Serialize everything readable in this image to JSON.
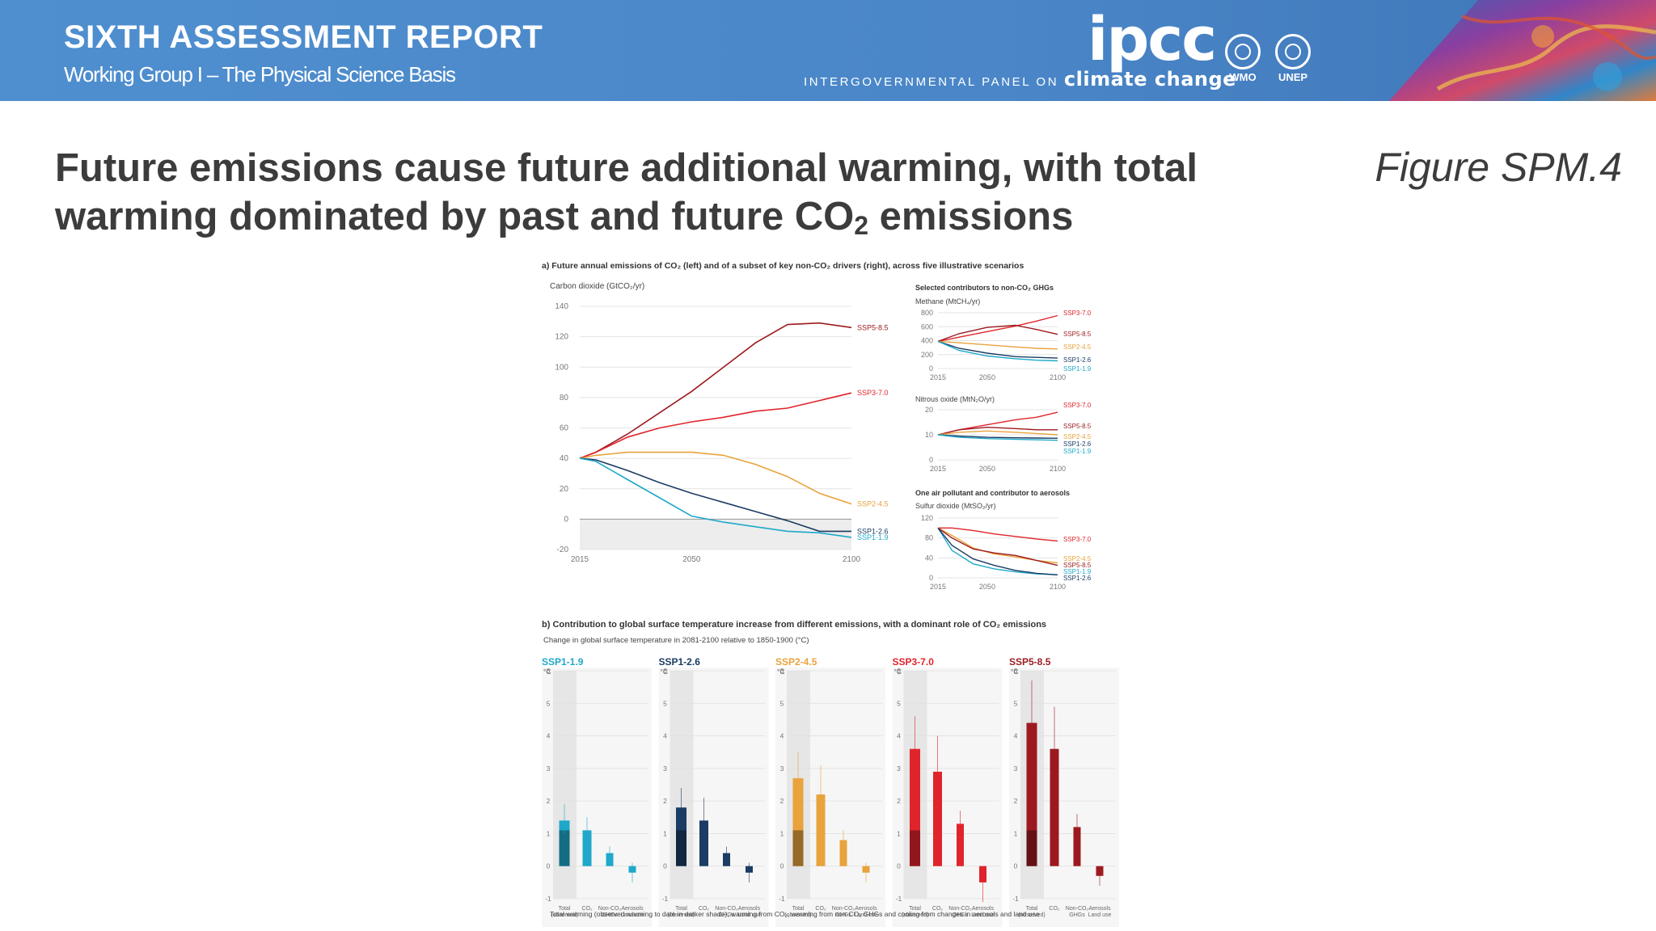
{
  "header": {
    "report_title": "SIXTH ASSESSMENT REPORT",
    "report_subtitle": "Working Group I – The Physical Science Basis",
    "logo_text": "ipcc",
    "panel_name_prefix": "INTERGOVERNMENTAL PANEL ON",
    "panel_name_suffix": "climate change",
    "partners": [
      {
        "label": "WMO",
        "icon": "wmo-emblem-icon"
      },
      {
        "label": "UNEP",
        "icon": "unep-emblem-icon"
      }
    ],
    "colors": {
      "banner": "#4a86c8"
    }
  },
  "slide": {
    "title_line1": "Future emissions cause future additional warming, with total",
    "title_line2_prefix": "warming dominated by past and future CO",
    "title_line2_sub": "2",
    "title_line2_suffix": " emissions",
    "figure_label": "Figure SPM.4"
  },
  "colors": {
    "SSP1-1.9": "#1fa8c9",
    "SSP1-2.6": "#1b3c63",
    "SSP2-4.5": "#e8a33c",
    "SSP3-7.0": "#e0242b",
    "SSP5-8.5": "#9c1a1f"
  },
  "chart_data": [
    {
      "type": "line",
      "panel": "a",
      "panel_title": "a) Future annual emissions of CO₂ (left) and of a subset of key non-CO₂ drivers (right), across five illustrative scenarios",
      "title": "",
      "ylabel": "Carbon dioxide (GtCO₂/yr)",
      "xlabel": "",
      "xlim": [
        2015,
        2100
      ],
      "ylim": [
        -20,
        140
      ],
      "xticks": [
        2015,
        2050,
        2100
      ],
      "yticks": [
        -20,
        0,
        20,
        40,
        60,
        80,
        100,
        120,
        140
      ],
      "x": [
        2015,
        2020,
        2030,
        2040,
        2050,
        2060,
        2070,
        2080,
        2090,
        2100
      ],
      "series": [
        {
          "name": "SSP5-8.5",
          "values": [
            40,
            44,
            56,
            70,
            84,
            100,
            116,
            128,
            129,
            126
          ]
        },
        {
          "name": "SSP3-7.0",
          "values": [
            40,
            44,
            54,
            60,
            64,
            67,
            71,
            73,
            78,
            83
          ]
        },
        {
          "name": "SSP2-4.5",
          "values": [
            40,
            42,
            44,
            44,
            44,
            42,
            36,
            28,
            17,
            10
          ]
        },
        {
          "name": "SSP1-2.6",
          "values": [
            40,
            39,
            32,
            24,
            17,
            11,
            5,
            -1,
            -8,
            -8
          ]
        },
        {
          "name": "SSP1-1.9",
          "values": [
            40,
            38,
            26,
            14,
            2,
            -2,
            -5,
            -8,
            -9,
            -12
          ]
        }
      ]
    },
    {
      "type": "line",
      "panel": "a-right-1",
      "section_title": "Selected contributors to non-CO₂ GHGs",
      "ylabel": "Methane (MtCH₄/yr)",
      "xlim": [
        2015,
        2100
      ],
      "ylim": [
        0,
        800
      ],
      "xticks": [
        2015,
        2050,
        2100
      ],
      "yticks": [
        0,
        200,
        400,
        600,
        800
      ],
      "x": [
        2015,
        2030,
        2050,
        2070,
        2085,
        2100
      ],
      "series": [
        {
          "name": "SSP3-7.0",
          "values": [
            390,
            450,
            530,
            610,
            680,
            760
          ]
        },
        {
          "name": "SSP5-8.5",
          "values": [
            390,
            500,
            590,
            620,
            560,
            490
          ]
        },
        {
          "name": "SSP2-4.5",
          "values": [
            390,
            370,
            340,
            310,
            290,
            280
          ]
        },
        {
          "name": "SSP1-2.6",
          "values": [
            390,
            290,
            220,
            170,
            160,
            150
          ]
        },
        {
          "name": "SSP1-1.9",
          "values": [
            390,
            260,
            180,
            140,
            120,
            110
          ]
        }
      ]
    },
    {
      "type": "line",
      "panel": "a-right-2",
      "ylabel": "Nitrous oxide (MtN₂O/yr)",
      "xlim": [
        2015,
        2100
      ],
      "ylim": [
        0,
        20
      ],
      "xticks": [
        2015,
        2050,
        2100
      ],
      "yticks": [
        0,
        10,
        20
      ],
      "x": [
        2015,
        2030,
        2050,
        2070,
        2085,
        2100
      ],
      "series": [
        {
          "name": "SSP3-7.0",
          "values": [
            10,
            12,
            14,
            16,
            17,
            19
          ]
        },
        {
          "name": "SSP5-8.5",
          "values": [
            10,
            12,
            13,
            12.5,
            12,
            12
          ]
        },
        {
          "name": "SSP2-4.5",
          "values": [
            10,
            11,
            11.5,
            11,
            10.5,
            10
          ]
        },
        {
          "name": "SSP1-2.6",
          "values": [
            10,
            9.5,
            9,
            8.8,
            8.7,
            8.6
          ]
        },
        {
          "name": "SSP1-1.9",
          "values": [
            10,
            9,
            8.5,
            8.2,
            8,
            7.8
          ]
        }
      ]
    },
    {
      "type": "line",
      "panel": "a-right-3",
      "section_title": "One air pollutant and contributor to aerosols",
      "ylabel": "Sulfur dioxide (MtSO₂/yr)",
      "xlim": [
        2015,
        2100
      ],
      "ylim": [
        0,
        120
      ],
      "xticks": [
        2015,
        2050,
        2100
      ],
      "yticks": [
        0,
        40,
        80,
        120
      ],
      "x": [
        2015,
        2025,
        2040,
        2055,
        2070,
        2085,
        2100
      ],
      "series": [
        {
          "name": "SSP3-7.0",
          "values": [
            100,
            100,
            95,
            88,
            83,
            78,
            74
          ]
        },
        {
          "name": "SSP2-4.5",
          "values": [
            100,
            85,
            60,
            48,
            42,
            35,
            30
          ]
        },
        {
          "name": "SSP5-8.5",
          "values": [
            100,
            80,
            58,
            50,
            45,
            35,
            25
          ]
        },
        {
          "name": "SSP1-1.9",
          "values": [
            100,
            55,
            28,
            18,
            12,
            8,
            6
          ]
        },
        {
          "name": "SSP1-2.6",
          "values": [
            100,
            65,
            38,
            25,
            15,
            9,
            6
          ]
        }
      ]
    },
    {
      "type": "bar",
      "panel": "b",
      "panel_title": "b) Contribution to global surface temperature increase from different emissions, with a dominant role of CO₂ emissions",
      "subtitle": "Change in global surface temperature in 2081-2100 relative to 1850-1900 (°C)",
      "unit": "°C",
      "ylim": [
        -1,
        6
      ],
      "yticks": [
        -1,
        0,
        1,
        2,
        3,
        4,
        5,
        6
      ],
      "category_lines": [
        [
          "Total",
          "(observed)"
        ],
        [
          "CO₂",
          ""
        ],
        [
          "Non-CO₂",
          "GHGs"
        ],
        [
          "Aerosols",
          "Land use"
        ]
      ],
      "observed_to_date": 1.1,
      "scenarios": [
        {
          "name": "SSP1-1.9",
          "values": [
            1.4,
            1.1,
            0.4,
            -0.2
          ],
          "low": [
            1.0,
            0.8,
            0.2,
            -0.5
          ],
          "high": [
            1.9,
            1.5,
            0.6,
            0.1
          ]
        },
        {
          "name": "SSP1-2.6",
          "values": [
            1.8,
            1.4,
            0.4,
            -0.2
          ],
          "low": [
            1.3,
            1.0,
            0.2,
            -0.5
          ],
          "high": [
            2.4,
            2.1,
            0.6,
            0.1
          ]
        },
        {
          "name": "SSP2-4.5",
          "values": [
            2.7,
            2.2,
            0.8,
            -0.2
          ],
          "low": [
            2.1,
            1.6,
            0.5,
            -0.5
          ],
          "high": [
            3.5,
            3.1,
            1.1,
            0.1
          ]
        },
        {
          "name": "SSP3-7.0",
          "values": [
            3.6,
            2.9,
            1.3,
            -0.5
          ],
          "low": [
            2.8,
            2.2,
            0.9,
            -1.1
          ],
          "high": [
            4.6,
            4.0,
            1.7,
            0.0
          ]
        },
        {
          "name": "SSP5-8.5",
          "values": [
            4.4,
            3.6,
            1.2,
            -0.3
          ],
          "low": [
            3.3,
            2.7,
            0.8,
            -0.6
          ],
          "high": [
            5.7,
            4.9,
            1.6,
            0.0
          ]
        }
      ],
      "footnote": "Total warming (observed warming to date in darker shade), warming from CO₂, warming from non-CO₂ GHGs and cooling from changes in aerosols and land use"
    }
  ]
}
